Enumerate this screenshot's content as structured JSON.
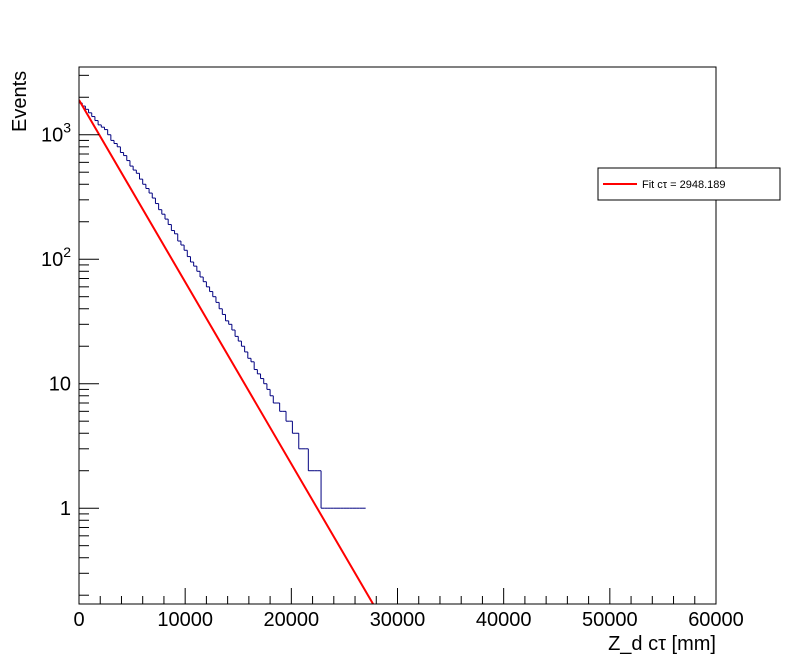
{
  "chart_data": {
    "type": "line",
    "xlabel": "Z_d cτ [mm]",
    "ylabel": "Events",
    "xlim": [
      0,
      60000
    ],
    "ylim": [
      0.17,
      3500
    ],
    "y_scale": "log",
    "grid": false,
    "x_ticks": [
      0,
      10000,
      20000,
      30000,
      40000,
      50000,
      60000
    ],
    "x_tick_labels": [
      "0",
      "10000",
      "20000",
      "30000",
      "40000",
      "50000",
      "60000"
    ],
    "y_ticks": [
      1,
      10,
      100,
      1000
    ],
    "y_tick_labels": [
      "1",
      "10",
      "10²",
      "10³"
    ],
    "legend": {
      "position": "top-right",
      "entries": [
        "Fit cτ = 2948.189"
      ]
    },
    "series": [
      {
        "kind": "histogram",
        "color": "#000080",
        "bin_width": 300,
        "x_start": 0,
        "values": [
          1800,
          1700,
          1600,
          1500,
          1400,
          1300,
          1200,
          1150,
          1100,
          1000,
          900,
          850,
          800,
          720,
          680,
          620,
          560,
          520,
          490,
          440,
          400,
          370,
          340,
          310,
          280,
          250,
          230,
          210,
          190,
          170,
          160,
          140,
          130,
          118,
          105,
          95,
          88,
          80,
          72,
          66,
          60,
          55,
          50,
          45,
          40,
          36,
          32,
          30,
          27,
          24,
          22,
          20,
          18,
          16,
          15,
          13,
          12,
          11,
          10,
          9,
          8,
          7,
          7,
          6,
          6,
          5,
          5,
          4,
          4,
          3,
          3,
          3,
          2,
          2,
          2,
          2,
          1,
          1,
          1,
          1,
          1,
          1,
          1,
          1,
          1,
          1,
          1,
          1,
          1,
          1
        ]
      },
      {
        "name": "Fit cτ = 2948.189",
        "kind": "fit",
        "color": "#ff0000",
        "x": [
          0,
          27700
        ],
        "y": [
          1900,
          0.17
        ]
      }
    ]
  }
}
